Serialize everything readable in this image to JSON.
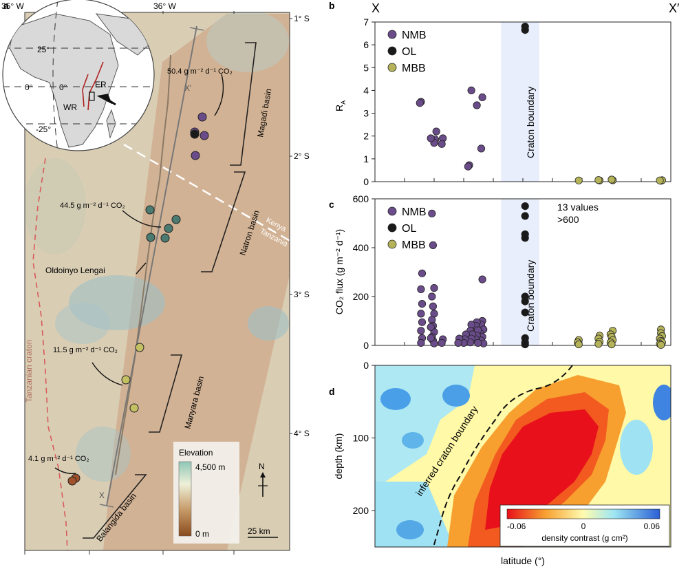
{
  "panel_letters": {
    "a": "a",
    "b": "b",
    "c": "c",
    "d": "d"
  },
  "colors": {
    "NMB": "#6b4c8a",
    "OL": "#1a1a1a",
    "MBB": "#b5b35a",
    "craton_band": "#e8eefb",
    "rift_line": "#777777"
  },
  "map": {
    "lon_labels": [
      "35° W",
      "36° W"
    ],
    "lat_labels": [
      "1° S",
      "2° S",
      "3° S",
      "4° S"
    ],
    "basins": {
      "magadi": "Magadi basin",
      "natron": "Natron basin",
      "manyara": "Manyara basin",
      "balangida": "Balangida basin"
    },
    "flux_labels": {
      "magadi": "50.4 g m⁻² d⁻¹ CO₂",
      "natron": "44.5 g m⁻² d⁻¹ CO₂",
      "manyara": "11.5 g m⁻² d⁻¹ CO₂",
      "balangida": "4.1 g m⁻² d⁻¹ CO₂"
    },
    "volcano": "Oldoinyo Lengai",
    "border": {
      "north": "Kenya",
      "south": "Tanzania"
    },
    "craton": "Tanzanian craton",
    "profile_ends": {
      "start": "X",
      "end": "X′"
    },
    "inset": {
      "lat_n": "25°",
      "lat_eq": "0°",
      "lat_s": "-25°",
      "lon0": "0°",
      "er": "ER",
      "wr": "WR"
    },
    "legend": {
      "title": "Elevation",
      "max": "4,500 m",
      "min": "0 m"
    },
    "north": "N",
    "scale": "25 km"
  },
  "chart_data": [
    {
      "type": "scatter",
      "panel": "b",
      "title": "",
      "xlabel": "latitude (°)",
      "ylabel": "R_A",
      "xlim": [
        -1.45,
        -4.15
      ],
      "ylim": [
        0,
        7
      ],
      "yticks": [
        0,
        1,
        2,
        3,
        4,
        5,
        6,
        7
      ],
      "profile_ends": [
        "X",
        "X′"
      ],
      "shaded_band": {
        "label": "Craton boundary",
        "x": [
          -2.6,
          -2.95
        ]
      },
      "legend": [
        "NMB",
        "OL",
        "MBB"
      ],
      "series": [
        {
          "name": "MBB",
          "points": [
            [
              -4.06,
              0.04
            ],
            [
              -4.07,
              0.06
            ],
            [
              -4.05,
              0.05
            ],
            [
              -3.62,
              0.06
            ],
            [
              -3.61,
              0.09
            ],
            [
              -3.5,
              0.05
            ],
            [
              -3.49,
              0.07
            ],
            [
              -3.31,
              0.05
            ]
          ]
        },
        {
          "name": "OL",
          "points": [
            [
              -2.82,
              6.8
            ],
            [
              -2.82,
              6.65
            ]
          ]
        },
        {
          "name": "NMB",
          "points": [
            [
              -2.43,
              3.7
            ],
            [
              -2.42,
              1.45
            ],
            [
              -2.38,
              3.35
            ],
            [
              -2.33,
              4.0
            ],
            [
              -2.31,
              0.72
            ],
            [
              -2.3,
              0.66
            ],
            [
              -2.07,
              1.9
            ],
            [
              -2.06,
              1.65
            ],
            [
              -2.01,
              2.2
            ],
            [
              -2.0,
              1.85
            ],
            [
              -1.99,
              1.7
            ],
            [
              -1.96,
              1.9
            ],
            [
              -1.87,
              3.5
            ],
            [
              -1.86,
              3.45
            ]
          ]
        }
      ]
    },
    {
      "type": "scatter",
      "panel": "c",
      "title": "",
      "ylabel": "CO₂ flux (g m⁻² d⁻¹)",
      "xlim": [
        -1.45,
        -4.15
      ],
      "ylim": [
        0,
        600
      ],
      "yticks": [
        0,
        200,
        400,
        600
      ],
      "shaded_band": {
        "label": "Craton boundary",
        "x": [
          -2.6,
          -2.95
        ]
      },
      "legend": [
        "NMB",
        "OL",
        "MBB"
      ],
      "annotation": [
        "13 values",
        ">600"
      ],
      "series": [
        {
          "name": "MBB",
          "points": [
            [
              -4.06,
              65
            ],
            [
              -4.06,
              50
            ],
            [
              -4.07,
              38
            ],
            [
              -4.05,
              28
            ],
            [
              -4.06,
              18
            ],
            [
              -4.07,
              12
            ],
            [
              -4.05,
              6
            ],
            [
              -4.06,
              2
            ],
            [
              -3.62,
              60
            ],
            [
              -3.6,
              45
            ],
            [
              -3.61,
              35
            ],
            [
              -3.62,
              22
            ],
            [
              -3.6,
              12
            ],
            [
              -3.61,
              4
            ],
            [
              -3.5,
              40
            ],
            [
              -3.49,
              28
            ],
            [
              -3.5,
              15
            ],
            [
              -3.49,
              6
            ],
            [
              -3.31,
              22
            ],
            [
              -3.3,
              12
            ],
            [
              -3.31,
              4
            ]
          ]
        },
        {
          "name": "OL",
          "points": [
            [
              -2.82,
              570
            ],
            [
              -2.82,
              530
            ],
            [
              -2.82,
              455
            ],
            [
              -2.82,
              440
            ],
            [
              -2.82,
              200
            ],
            [
              -2.82,
              180
            ],
            [
              -2.82,
              135
            ],
            [
              -2.82,
              30
            ],
            [
              -2.82,
              12
            ],
            [
              -2.82,
              4
            ]
          ]
        },
        {
          "name": "NMB",
          "points": [
            [
              -2.43,
              270
            ],
            [
              -2.43,
              100
            ],
            [
              -2.42,
              85
            ],
            [
              -2.44,
              65
            ],
            [
              -2.41,
              50
            ],
            [
              -2.43,
              35
            ],
            [
              -2.42,
              20
            ],
            [
              -2.44,
              8
            ],
            [
              -2.38,
              95
            ],
            [
              -2.37,
              80
            ],
            [
              -2.39,
              62
            ],
            [
              -2.38,
              40
            ],
            [
              -2.37,
              25
            ],
            [
              -2.39,
              10
            ],
            [
              -2.33,
              85
            ],
            [
              -2.32,
              60
            ],
            [
              -2.34,
              45
            ],
            [
              -2.33,
              28
            ],
            [
              -2.32,
              12
            ],
            [
              -2.28,
              45
            ],
            [
              -2.27,
              25
            ],
            [
              -2.26,
              10
            ],
            [
              -2.22,
              28
            ],
            [
              -2.21,
              10
            ],
            [
              -2.07,
              25
            ],
            [
              -2.06,
              10
            ],
            [
              -1.97,
              540
            ],
            [
              -1.98,
              410
            ],
            [
              -1.99,
              235
            ],
            [
              -1.97,
              200
            ],
            [
              -1.98,
              160
            ],
            [
              -1.99,
              130
            ],
            [
              -1.97,
              105
            ],
            [
              -1.98,
              80
            ],
            [
              -1.99,
              55
            ],
            [
              -1.97,
              35
            ],
            [
              -1.98,
              20
            ],
            [
              -1.99,
              8
            ],
            [
              -1.96,
              75
            ],
            [
              -1.96,
              30
            ],
            [
              -1.88,
              295
            ],
            [
              -1.87,
              230
            ],
            [
              -1.88,
              170
            ],
            [
              -1.87,
              130
            ],
            [
              -1.88,
              95
            ],
            [
              -1.87,
              60
            ],
            [
              -1.88,
              30
            ],
            [
              -1.87,
              10
            ]
          ]
        }
      ]
    },
    {
      "type": "heatmap",
      "panel": "d",
      "xlabel": "latitude (°)",
      "ylabel": "depth (km)",
      "ylim": [
        0,
        250
      ],
      "yticks": [
        0,
        100,
        200
      ],
      "annotation": "inferred craton boundary",
      "colorbar": {
        "label": "density contrast (g cm²)",
        "min": "-0.06",
        "mid": "0",
        "max": "0.06"
      }
    }
  ]
}
